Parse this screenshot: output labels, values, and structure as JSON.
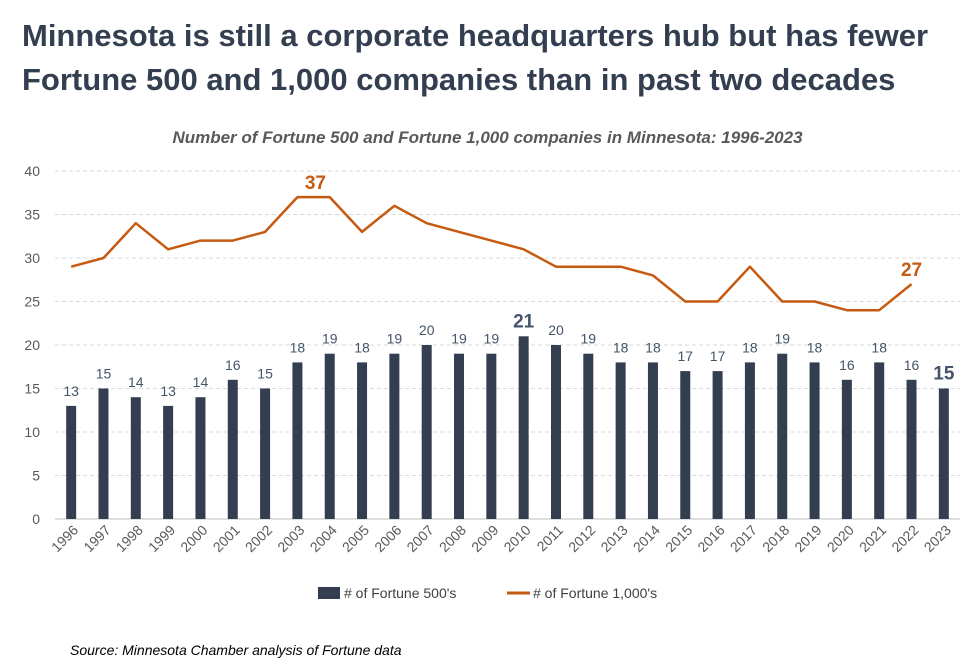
{
  "header": {
    "title": "Minnesota is still a corporate headquarters hub but has fewer Fortune 500 and 1,000 companies than in past two decades"
  },
  "colors": {
    "bar": "#333f50",
    "line": "#c55a11",
    "grid": "#d9d9d9"
  },
  "chart_data": {
    "type": "bar",
    "title": "Number of Fortune 500 and Fortune 1,000 companies in Minnesota: 1996-2023",
    "xlabel": "",
    "ylabel": "",
    "ylim": [
      0,
      40
    ],
    "yticks": [
      "0",
      "5",
      "10",
      "15",
      "20",
      "25",
      "30",
      "35",
      "40"
    ],
    "categories": [
      "1996",
      "1997",
      "1998",
      "1999",
      "2000",
      "2001",
      "2002",
      "2003",
      "2004",
      "2005",
      "2006",
      "2007",
      "2008",
      "2009",
      "2010",
      "2011",
      "2012",
      "2013",
      "2014",
      "2015",
      "2016",
      "2017",
      "2018",
      "2019",
      "2020",
      "2021",
      "2022",
      "2023"
    ],
    "series": [
      {
        "name": "# of Fortune 500's",
        "type": "bar",
        "values": [
          13,
          15,
          14,
          13,
          14,
          16,
          15,
          18,
          19,
          18,
          19,
          20,
          19,
          19,
          21,
          20,
          19,
          18,
          18,
          17,
          17,
          18,
          19,
          18,
          16,
          18,
          16,
          15
        ]
      },
      {
        "name": "# of Fortune 1,000's",
        "type": "line",
        "values": [
          29,
          30,
          34,
          31,
          32,
          32,
          33,
          37,
          37,
          33,
          36,
          34,
          33,
          32,
          31,
          29,
          29,
          29,
          28,
          25,
          25,
          29,
          25,
          25,
          24,
          24,
          27,
          null
        ]
      }
    ],
    "line_annotations": [
      {
        "label": "37",
        "x": "2003",
        "value": 37
      },
      {
        "label": "27",
        "x": "2022",
        "value": 27
      }
    ],
    "legend_position": "bottom",
    "grid": true
  },
  "footer": {
    "source": "Source: Minnesota Chamber analysis of Fortune data"
  }
}
